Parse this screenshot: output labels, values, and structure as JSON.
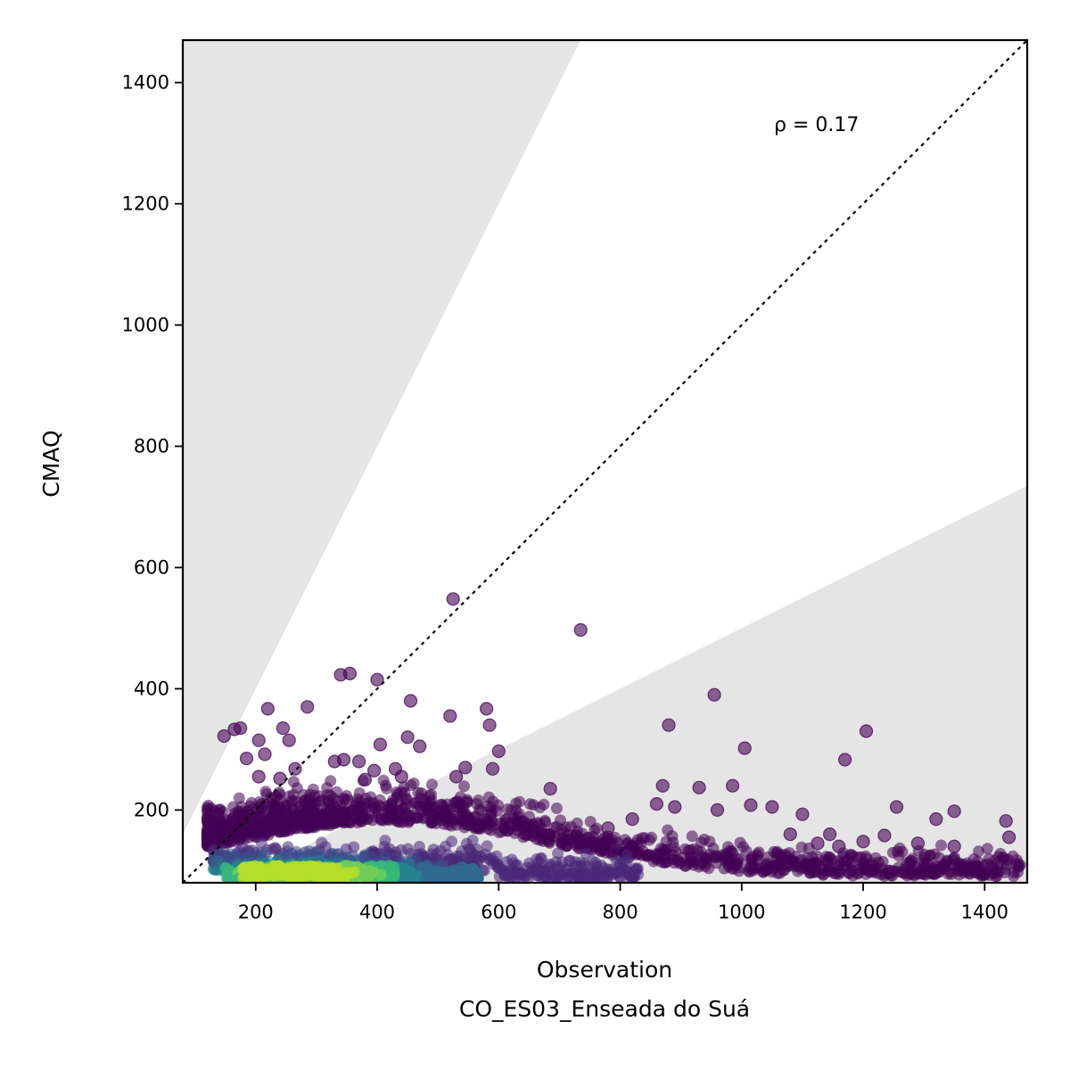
{
  "chart_data": {
    "type": "scatter",
    "xlabel_line1": "Observation",
    "xlabel_line2": "CO_ES03_Enseada do Suá",
    "ylabel": "CMAQ",
    "annotation": "ρ = 0.17",
    "xlim": [
      80,
      1470
    ],
    "ylim": [
      80,
      1470
    ],
    "xticks": [
      200,
      400,
      600,
      800,
      1000,
      1200,
      1400
    ],
    "yticks": [
      200,
      400,
      600,
      800,
      1000,
      1200,
      1400
    ],
    "xtick_labels": [
      "200",
      "400",
      "600",
      "800",
      "1000",
      "1200",
      "1400"
    ],
    "ytick_labels": [
      "200",
      "400",
      "600",
      "800",
      "1000",
      "1200",
      "1400"
    ],
    "reference_line": {
      "slope": 1,
      "style": "dotted",
      "color": "#000000"
    },
    "shaded_regions": [
      {
        "description": "upper region",
        "slope_min": 2.0,
        "color": "#e5e5e5"
      },
      {
        "description": "lower region",
        "slope_max": 0.5,
        "color": "#e5e5e5"
      }
    ],
    "colormap": "viridis",
    "colors": {
      "low_density": "#440154",
      "mid": "#31688e",
      "high_density": "#bddf26"
    },
    "points": [
      [
        525,
        548
      ],
      [
        735,
        497
      ],
      [
        340,
        423
      ],
      [
        355,
        425
      ],
      [
        400,
        415
      ],
      [
        455,
        380
      ],
      [
        285,
        370
      ],
      [
        220,
        367
      ],
      [
        580,
        367
      ],
      [
        520,
        355
      ],
      [
        955,
        390
      ],
      [
        175,
        335
      ],
      [
        165,
        333
      ],
      [
        245,
        335
      ],
      [
        585,
        340
      ],
      [
        880,
        340
      ],
      [
        148,
        322
      ],
      [
        255,
        315
      ],
      [
        205,
        315
      ],
      [
        450,
        320
      ],
      [
        405,
        308
      ],
      [
        470,
        305
      ],
      [
        1005,
        302
      ],
      [
        600,
        297
      ],
      [
        1205,
        330
      ],
      [
        215,
        292
      ],
      [
        185,
        285
      ],
      [
        345,
        283
      ],
      [
        330,
        280
      ],
      [
        370,
        280
      ],
      [
        1170,
        283
      ],
      [
        590,
        268
      ],
      [
        545,
        270
      ],
      [
        430,
        268
      ],
      [
        395,
        265
      ],
      [
        265,
        268
      ],
      [
        530,
        255
      ],
      [
        240,
        252
      ],
      [
        380,
        250
      ],
      [
        440,
        255
      ],
      [
        205,
        255
      ],
      [
        985,
        240
      ],
      [
        870,
        240
      ],
      [
        930,
        237
      ],
      [
        685,
        235
      ],
      [
        1255,
        205
      ],
      [
        1350,
        198
      ],
      [
        1320,
        185
      ],
      [
        1435,
        182
      ],
      [
        1100,
        193
      ],
      [
        1050,
        205
      ],
      [
        1015,
        208
      ],
      [
        960,
        200
      ],
      [
        890,
        205
      ],
      [
        1145,
        160
      ],
      [
        1235,
        158
      ],
      [
        1290,
        145
      ],
      [
        1440,
        155
      ],
      [
        1350,
        140
      ],
      [
        1200,
        148
      ],
      [
        860,
        210
      ],
      [
        820,
        185
      ],
      [
        780,
        170
      ],
      [
        1080,
        160
      ],
      [
        1125,
        145
      ],
      [
        1160,
        140
      ]
    ]
  }
}
